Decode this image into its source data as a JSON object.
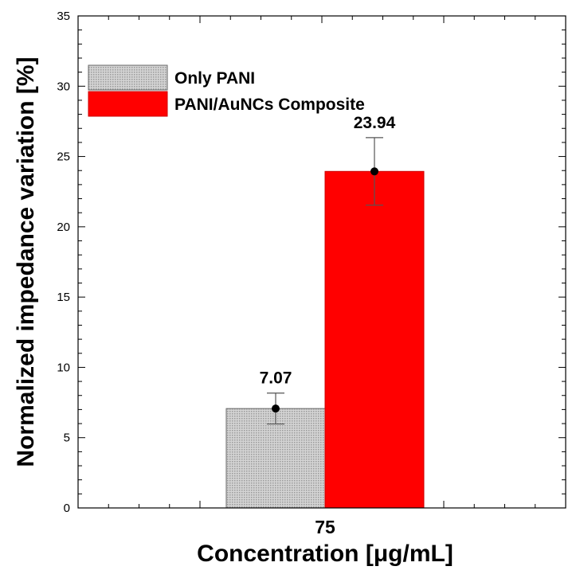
{
  "chart_data": {
    "type": "bar",
    "categories": [
      "75"
    ],
    "series": [
      {
        "name": "Only PANI",
        "values": [
          7.07
        ],
        "errors": [
          1.1
        ],
        "color": "#c8c8c8"
      },
      {
        "name": "PANI/AuNCs Composite",
        "values": [
          23.94
        ],
        "errors": [
          2.4
        ],
        "color": "#ff0000"
      }
    ],
    "data_labels": [
      "7.07",
      "23.94"
    ],
    "xlabel": "Concentration [μg/mL]",
    "ylabel": "Normalized impedance variation [%]",
    "ylim": [
      0,
      35
    ],
    "yticks": [
      "0",
      "5",
      "10",
      "15",
      "20",
      "25",
      "30",
      "35"
    ],
    "grid": false,
    "legend_position": "top-left"
  }
}
